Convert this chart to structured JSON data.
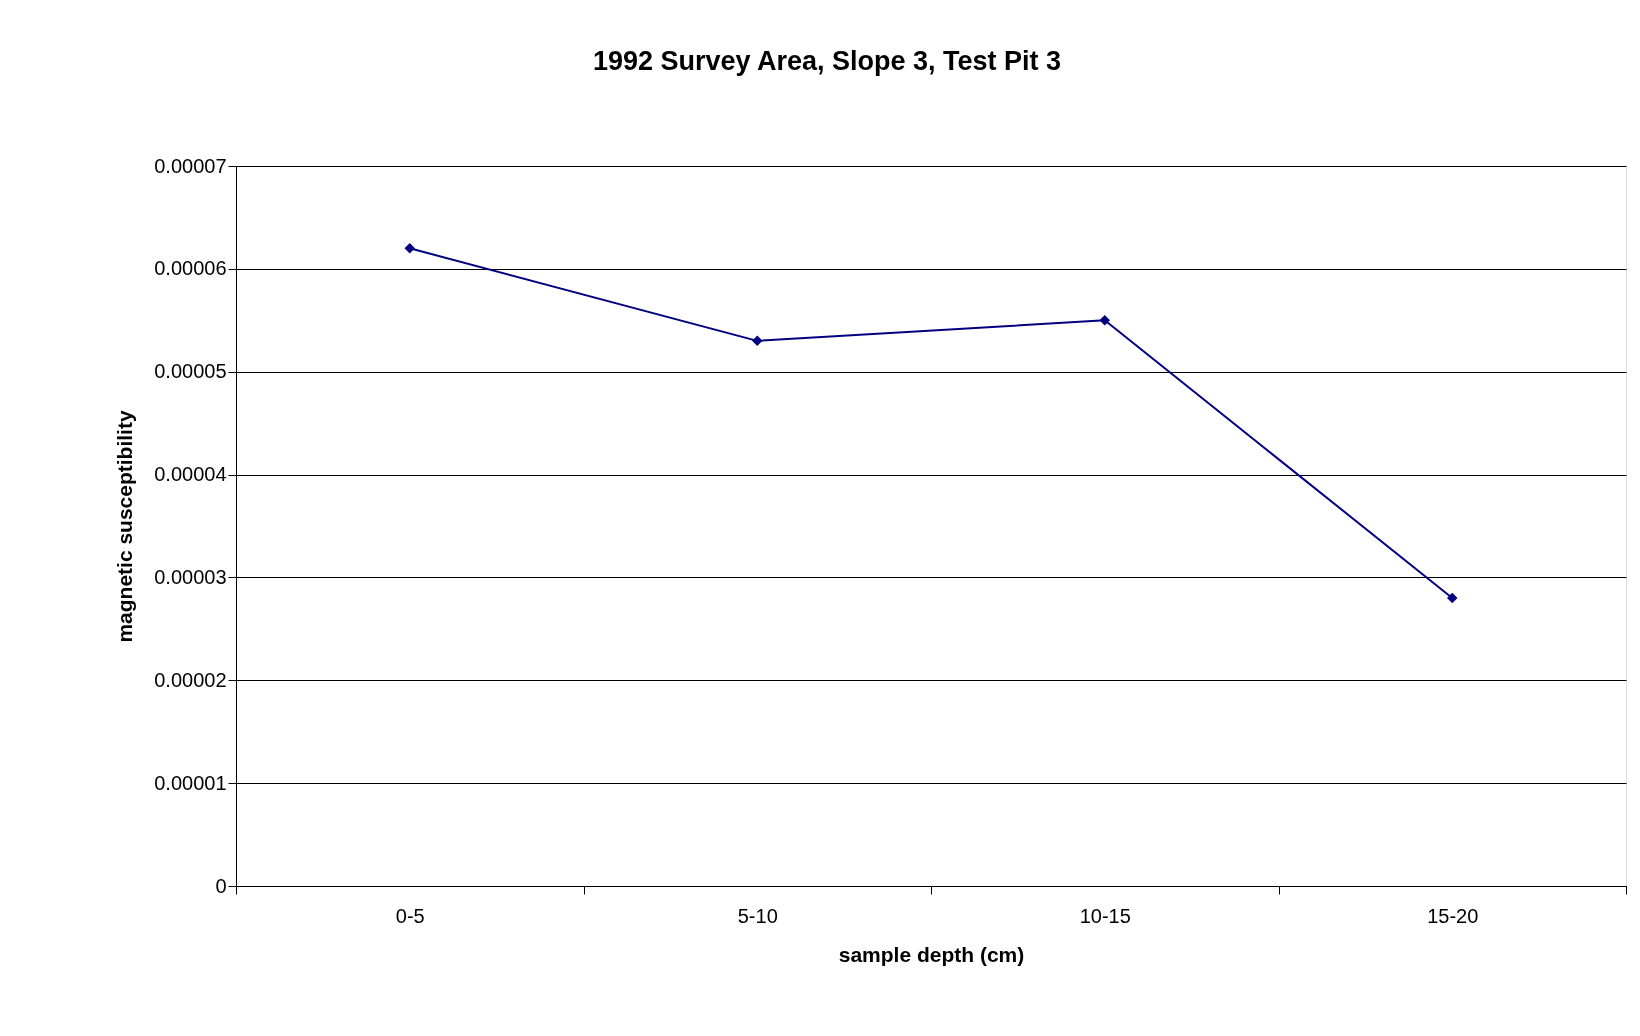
{
  "chart_data": {
    "type": "line",
    "title": "1992 Survey Area, Slope 3, Test Pit 3",
    "xlabel": "sample depth (cm)",
    "ylabel": "magnetic susceptibility",
    "categories": [
      "0-5",
      "5-10",
      "10-15",
      "15-20"
    ],
    "series": [
      {
        "color": "#000080",
        "values": [
          6.2e-05,
          5.3e-05,
          5.5e-05,
          2.8e-05
        ]
      }
    ],
    "ylim": [
      0,
      7e-05
    ],
    "yticks": [
      0,
      {
        "value": 1e-05,
        "label": "0.00001"
      },
      {
        "value": 2e-05,
        "label": "0.00002"
      },
      {
        "value": 3e-05,
        "label": "0.00003"
      },
      {
        "value": 4e-05,
        "label": "0.00004"
      },
      {
        "value": 5e-05,
        "label": "0.00005"
      },
      {
        "value": 6e-05,
        "label": "0.00006"
      },
      {
        "value": 7e-05,
        "label": "0.00007"
      }
    ],
    "grid": "y",
    "legend": false,
    "marker": "diamond",
    "line_style": "solid"
  }
}
